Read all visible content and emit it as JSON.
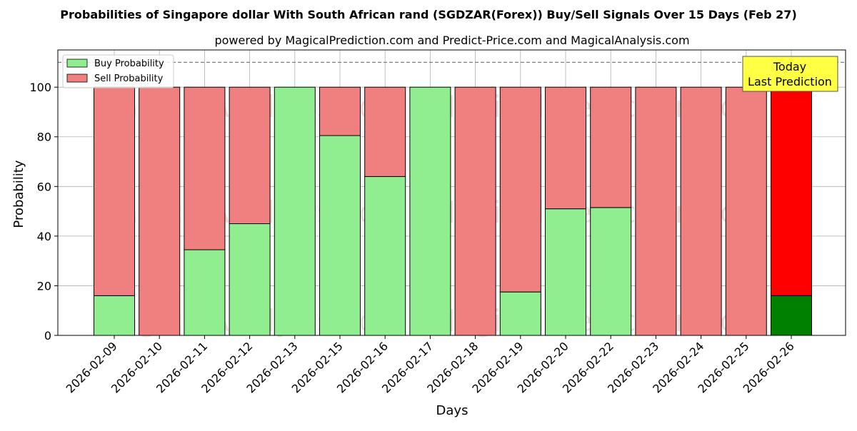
{
  "chart_data": {
    "type": "bar",
    "stacked": true,
    "title": "Probabilities of Singapore dollar With South African rand (SGDZAR(Forex)) Buy/Sell Signals Over 15 Days (Feb 27)",
    "subtitle": "powered by MagicalPrediction.com and Predict-Price.com and MagicalAnalysis.com",
    "xlabel": "Days",
    "ylabel": "Probability",
    "ylim": [
      0,
      115
    ],
    "yticks": [
      0,
      20,
      40,
      60,
      80,
      100
    ],
    "grid": true,
    "legend_position": "top-left",
    "reference_line": 110,
    "categories": [
      "2026-02-09",
      "2026-02-10",
      "2026-02-11",
      "2026-02-12",
      "2026-02-13",
      "2026-02-15",
      "2026-02-16",
      "2026-02-17",
      "2026-02-18",
      "2026-02-19",
      "2026-02-20",
      "2026-02-22",
      "2026-02-23",
      "2026-02-24",
      "2026-02-25",
      "2026-02-26"
    ],
    "series": [
      {
        "name": "Buy Probability",
        "color": "#90ee90",
        "values": [
          16,
          0,
          34.5,
          45,
          100,
          80.5,
          64,
          100,
          0,
          17.5,
          51,
          51.5,
          0,
          0,
          0,
          16
        ]
      },
      {
        "name": "Sell Probability",
        "color": "#f08080",
        "values": [
          84,
          100,
          65.5,
          55,
          0,
          19.5,
          36,
          0,
          100,
          82.5,
          49,
          48.5,
          100,
          100,
          100,
          84
        ]
      }
    ],
    "highlight": {
      "index": 15,
      "buy_color": "#008000",
      "sell_color": "#ff0000"
    },
    "annotation": {
      "lines": [
        "Today",
        "Last Prediction"
      ],
      "color": "#ffff44"
    },
    "watermarks": [
      "MagicalAnalysis.com",
      "MagicalPrediction.com"
    ]
  }
}
